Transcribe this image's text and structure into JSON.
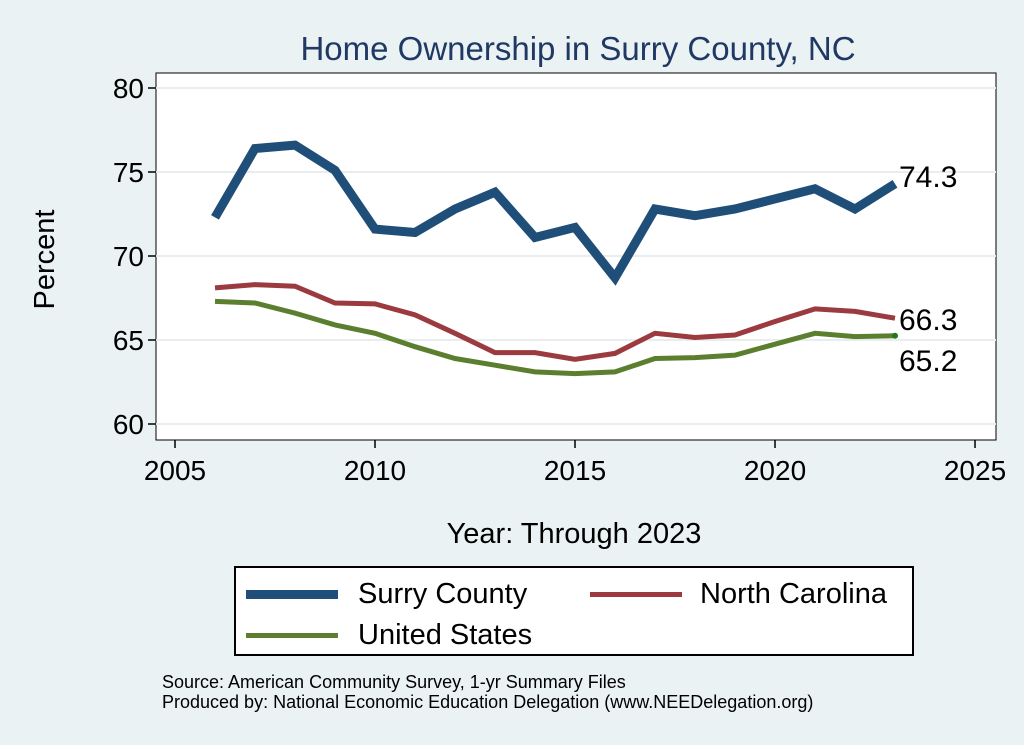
{
  "chart_data": {
    "type": "line",
    "title": "Home Ownership in Surry County, NC",
    "xlabel": "Year: Through 2023",
    "ylabel": "Percent",
    "xlim": [
      2005,
      2025
    ],
    "ylim": [
      60,
      80
    ],
    "xticks": [
      2005,
      2010,
      2015,
      2020,
      2025
    ],
    "yticks": [
      60,
      65,
      70,
      75,
      80
    ],
    "grid": true,
    "legend_position": "bottom",
    "series": [
      {
        "name": "Surry County",
        "color": "#1f4e79",
        "style": "thick",
        "x": [
          2006,
          2007,
          2008,
          2009,
          2010,
          2011,
          2012,
          2013,
          2014,
          2015,
          2016,
          2017,
          2018,
          2019,
          2020,
          2021,
          2022,
          2023
        ],
        "values": [
          72.3,
          76.4,
          76.6,
          75.1,
          71.6,
          71.4,
          72.8,
          73.8,
          71.1,
          71.7,
          68.7,
          72.8,
          72.4,
          72.8,
          73.4,
          74.0,
          72.8,
          74.3
        ],
        "end_label": "74.3"
      },
      {
        "name": "North Carolina",
        "color": "#9b3b3f",
        "style": "medium",
        "x": [
          2006,
          2007,
          2008,
          2009,
          2010,
          2011,
          2012,
          2013,
          2014,
          2015,
          2016,
          2017,
          2018,
          2019,
          2020,
          2021,
          2022,
          2023
        ],
        "values": [
          68.1,
          68.3,
          68.2,
          67.2,
          67.15,
          66.5,
          65.4,
          64.25,
          64.25,
          63.85,
          64.2,
          65.4,
          65.15,
          65.3,
          66.1,
          66.85,
          66.7,
          66.3
        ],
        "end_label": "66.3"
      },
      {
        "name": "United States",
        "color": "#5b7f2e",
        "style": "medium",
        "x": [
          2006,
          2007,
          2008,
          2009,
          2010,
          2011,
          2012,
          2013,
          2014,
          2015,
          2016,
          2017,
          2018,
          2019,
          2020,
          2021,
          2022,
          2023
        ],
        "values": [
          67.3,
          67.2,
          66.6,
          65.9,
          65.4,
          64.6,
          63.9,
          63.5,
          63.1,
          63.0,
          63.1,
          63.9,
          63.95,
          64.1,
          64.75,
          65.4,
          65.2,
          65.25
        ],
        "end_label": "65.2"
      }
    ],
    "legend": [
      "Surry County",
      "North Carolina",
      "United States"
    ]
  },
  "footnotes": {
    "source": "Source: American Community Survey, 1-yr Summary Files",
    "produced": "Produced by: National Economic Education Delegation (www.NEEDelegation.org)"
  }
}
